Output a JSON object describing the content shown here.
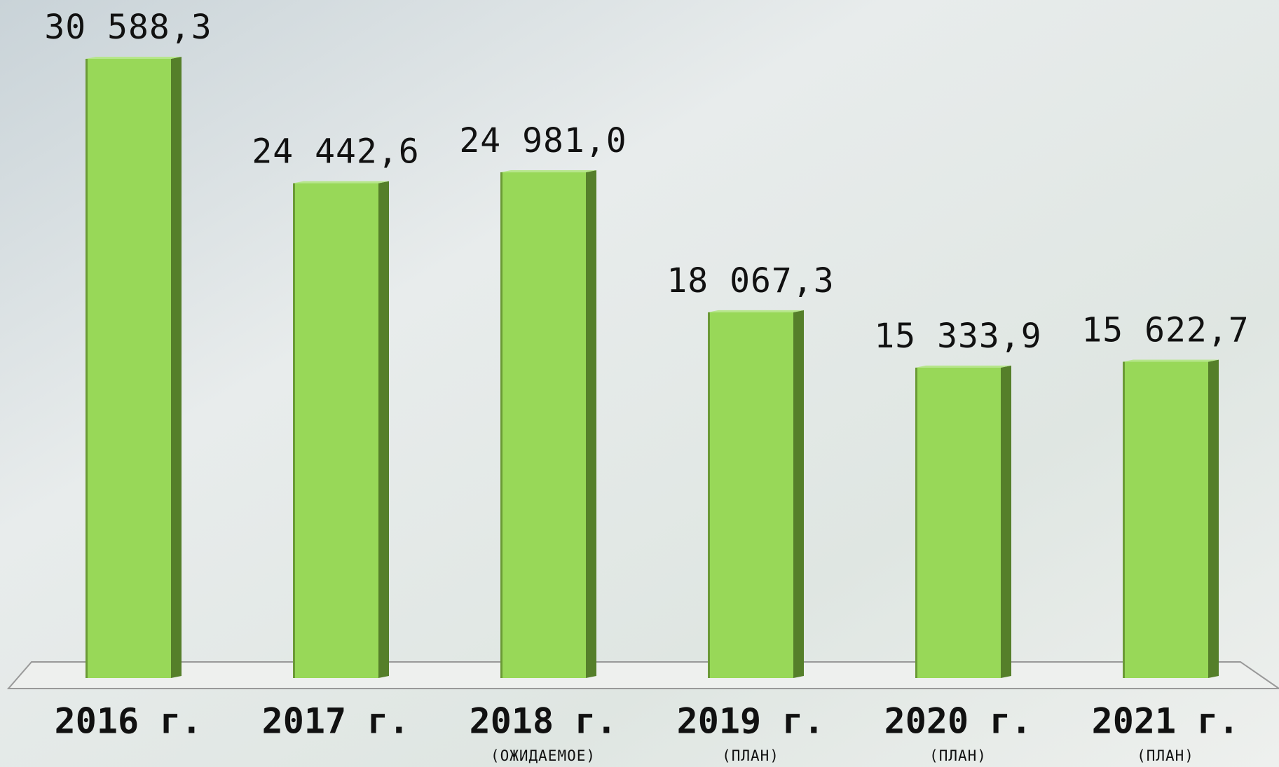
{
  "chart_data": {
    "type": "bar",
    "categories": [
      "2016 г.",
      "2017 г.",
      "2018 г.",
      "2019 г.",
      "2020 г.",
      "2021 г."
    ],
    "category_notes": [
      null,
      null,
      "(ОЖИДАЕМОЕ)",
      "(ПЛАН)",
      "(ПЛАН)",
      "(ПЛАН)"
    ],
    "values": [
      30588.3,
      24442.6,
      24981.0,
      18067.3,
      15333.9,
      15622.7
    ],
    "value_labels": [
      "30 588,3",
      "24 442,6",
      "24 981,0",
      "18 067,3",
      "15 333,9",
      "15 622,7"
    ],
    "color": "#98d858"
  }
}
